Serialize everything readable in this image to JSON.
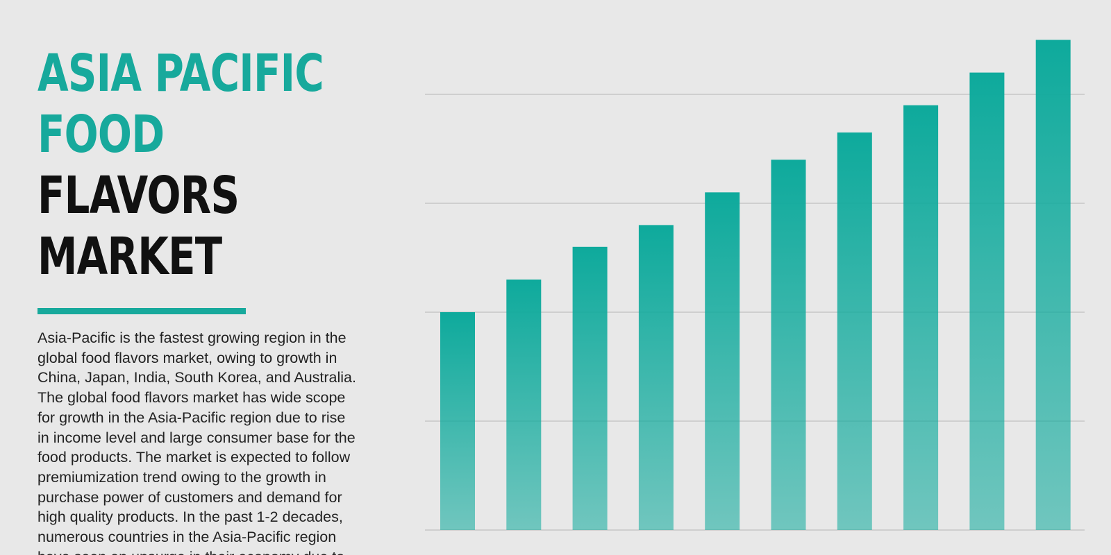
{
  "title_lines": [
    {
      "text": "ASIA PACIFIC",
      "color": "#17a99c"
    },
    {
      "text": "FOOD",
      "color": "#17a99c"
    },
    {
      "text": "FLAVORS",
      "color": "#111111"
    },
    {
      "text": "MARKET",
      "color": "#111111"
    }
  ],
  "body_lines": [
    "Asia-Pacific is the fastest growing region in the",
    "global food flavors market, owing to growth in",
    "China, Japan, India, South Korea, and Australia.",
    "The global food flavors market has wide scope",
    "for growth in the Asia-Pacific region due to rise",
    "in income level and large consumer base for the",
    "food products. The market is expected to follow",
    "premiumization trend owing to the growth in",
    "purchase power of customers and demand for",
    "high quality products. In the past 1-2 decades,",
    "numerous countries in the Asia-Pacific region",
    "have seen an upsurge in their economy due to"
  ],
  "chart_data": {
    "type": "bar",
    "categories": [
      null,
      null,
      null,
      null,
      null,
      null,
      null,
      null,
      null,
      null
    ],
    "values": [
      2.0,
      2.3,
      2.6,
      2.8,
      3.1,
      3.4,
      3.65,
      3.9,
      4.2,
      4.5
    ],
    "color": "#0eaa9c",
    "ylim": [
      0,
      4.6
    ],
    "yticks": [
      1,
      2,
      3,
      4
    ],
    "grid": true
  }
}
